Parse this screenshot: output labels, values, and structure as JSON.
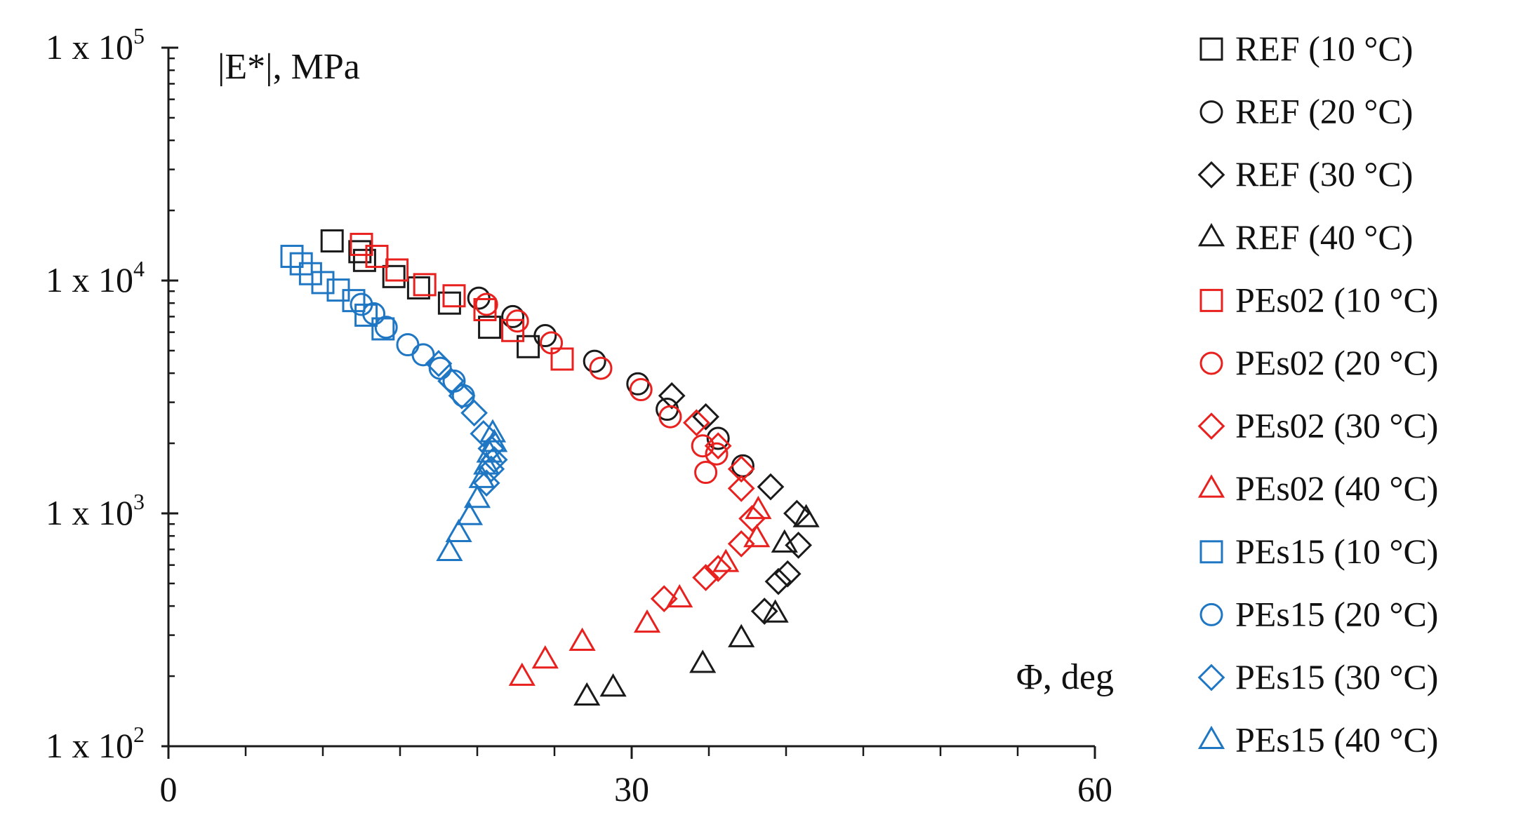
{
  "chart_data": {
    "type": "scatter",
    "title": "",
    "xlabel": "Φ, deg",
    "ylabel": "|E*|, MPa",
    "xlim": [
      0,
      60
    ],
    "ylim": [
      100,
      100000
    ],
    "yscale": "log",
    "x_ticks": [
      0,
      30,
      60
    ],
    "x_tick_labels": [
      "0",
      "30",
      "60"
    ],
    "x_minor_step": 5,
    "y_ticks": [
      {
        "value": 100,
        "base": "1 x 10",
        "exp": "2"
      },
      {
        "value": 1000,
        "base": "1 x 10",
        "exp": "3"
      },
      {
        "value": 10000,
        "base": "1 x 10",
        "exp": "4"
      },
      {
        "value": 100000,
        "base": "1 x 10",
        "exp": "5"
      }
    ],
    "grid": false,
    "legend_position": "right",
    "series": [
      {
        "name": "REF (10 °C)",
        "marker": "square",
        "color": "#1a1a1a",
        "points": [
          [
            10.6,
            14800
          ],
          [
            12.4,
            13300
          ],
          [
            12.7,
            12200
          ],
          [
            14.6,
            10400
          ],
          [
            16.2,
            9300
          ],
          [
            18.2,
            8000
          ],
          [
            20.8,
            6300
          ],
          [
            23.3,
            5200
          ]
        ]
      },
      {
        "name": "REF (20 °C)",
        "marker": "circle",
        "color": "#1a1a1a",
        "points": [
          [
            20.1,
            8400
          ],
          [
            22.3,
            7000
          ],
          [
            24.4,
            5800
          ],
          [
            27.6,
            4500
          ],
          [
            30.4,
            3600
          ],
          [
            32.3,
            2800
          ],
          [
            35.6,
            2100
          ],
          [
            37.2,
            1600
          ]
        ]
      },
      {
        "name": "REF (30 °C)",
        "marker": "diamond",
        "color": "#1a1a1a",
        "points": [
          [
            32.6,
            3200
          ],
          [
            34.8,
            2600
          ],
          [
            39.0,
            1300
          ],
          [
            40.7,
            1000
          ],
          [
            40.8,
            730
          ],
          [
            40.1,
            550
          ],
          [
            39.5,
            510
          ],
          [
            38.6,
            380
          ]
        ]
      },
      {
        "name": "REF (40 °C)",
        "marker": "triangle",
        "color": "#1a1a1a",
        "points": [
          [
            41.3,
            950
          ],
          [
            39.9,
            740
          ],
          [
            39.3,
            370
          ],
          [
            37.1,
            290
          ],
          [
            34.6,
            225
          ],
          [
            28.8,
            178
          ],
          [
            27.1,
            163
          ]
        ]
      },
      {
        "name": "PEs02 (10 °C)",
        "marker": "square",
        "color": "#e8201e",
        "points": [
          [
            12.5,
            14300
          ],
          [
            13.5,
            12700
          ],
          [
            14.8,
            11100
          ],
          [
            16.6,
            9600
          ],
          [
            18.5,
            8600
          ],
          [
            20.5,
            7500
          ],
          [
            22.3,
            6100
          ],
          [
            25.5,
            4600
          ]
        ]
      },
      {
        "name": "PEs02 (20 °C)",
        "marker": "circle",
        "color": "#e8201e",
        "points": [
          [
            20.6,
            7900
          ],
          [
            22.6,
            6700
          ],
          [
            24.8,
            5400
          ],
          [
            28.0,
            4200
          ],
          [
            30.6,
            3400
          ],
          [
            32.5,
            2600
          ],
          [
            34.6,
            1950
          ],
          [
            35.5,
            1800
          ],
          [
            34.8,
            1500
          ]
        ]
      },
      {
        "name": "PEs02 (30 °C)",
        "marker": "diamond",
        "color": "#e8201e",
        "points": [
          [
            34.2,
            2450
          ],
          [
            35.6,
            1950
          ],
          [
            37.1,
            1550
          ],
          [
            37.1,
            1280
          ],
          [
            37.8,
            950
          ],
          [
            37.1,
            740
          ],
          [
            35.6,
            580
          ],
          [
            34.8,
            530
          ],
          [
            32.1,
            430
          ]
        ]
      },
      {
        "name": "PEs02 (40 °C)",
        "marker": "triangle",
        "color": "#e8201e",
        "points": [
          [
            38.2,
            1030
          ],
          [
            38.1,
            780
          ],
          [
            36.1,
            610
          ],
          [
            33.1,
            430
          ],
          [
            31.0,
            335
          ],
          [
            26.8,
            280
          ],
          [
            24.4,
            235
          ],
          [
            22.9,
            198
          ]
        ]
      },
      {
        "name": "PEs15 (10 °C)",
        "marker": "square",
        "color": "#1f77c4",
        "points": [
          [
            8.0,
            12700
          ],
          [
            8.6,
            11800
          ],
          [
            9.2,
            10700
          ],
          [
            10.0,
            9800
          ],
          [
            11.0,
            9100
          ],
          [
            12.0,
            8200
          ],
          [
            12.8,
            7100
          ],
          [
            13.9,
            6200
          ]
        ]
      },
      {
        "name": "PEs15 (20 °C)",
        "marker": "circle",
        "color": "#1f77c4",
        "points": [
          [
            12.5,
            7900
          ],
          [
            13.3,
            7200
          ],
          [
            14.1,
            6300
          ],
          [
            15.5,
            5300
          ],
          [
            16.5,
            4800
          ],
          [
            17.6,
            4200
          ],
          [
            18.5,
            3700
          ],
          [
            19.1,
            3200
          ]
        ]
      },
      {
        "name": "PEs15 (30 °C)",
        "marker": "diamond",
        "color": "#1f77c4",
        "points": [
          [
            17.5,
            4400
          ],
          [
            18.3,
            3700
          ],
          [
            19.0,
            3200
          ],
          [
            19.8,
            2700
          ],
          [
            20.4,
            2200
          ],
          [
            20.9,
            1900
          ],
          [
            21.1,
            1700
          ],
          [
            20.9,
            1550
          ],
          [
            20.6,
            1350
          ]
        ]
      },
      {
        "name": "PEs15 (40 °C)",
        "marker": "triangle",
        "color": "#1f77c4",
        "points": [
          [
            21.0,
            2200
          ],
          [
            21.1,
            2000
          ],
          [
            20.8,
            1800
          ],
          [
            20.6,
            1600
          ],
          [
            20.3,
            1400
          ],
          [
            20.0,
            1150
          ],
          [
            19.5,
            970
          ],
          [
            18.8,
            820
          ],
          [
            18.2,
            680
          ]
        ]
      }
    ]
  }
}
